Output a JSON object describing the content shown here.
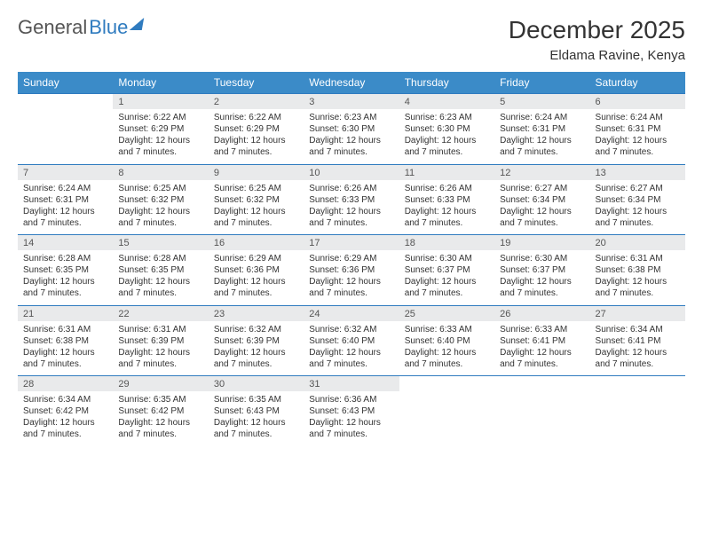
{
  "logo": {
    "part1": "General",
    "part2": "Blue"
  },
  "title": "December 2025",
  "location": "Eldama Ravine, Kenya",
  "colors": {
    "header_bg": "#3b8bc8",
    "header_text": "#ffffff",
    "daynum_bg": "#e9eaeb",
    "border": "#2f7bbf",
    "text": "#333333",
    "logo_gray": "#555555",
    "logo_blue": "#2f7bbf"
  },
  "day_headers": [
    "Sunday",
    "Monday",
    "Tuesday",
    "Wednesday",
    "Thursday",
    "Friday",
    "Saturday"
  ],
  "weeks": [
    {
      "nums": [
        "",
        "1",
        "2",
        "3",
        "4",
        "5",
        "6"
      ],
      "cells": [
        [],
        [
          "Sunrise: 6:22 AM",
          "Sunset: 6:29 PM",
          "Daylight: 12 hours",
          "and 7 minutes."
        ],
        [
          "Sunrise: 6:22 AM",
          "Sunset: 6:29 PM",
          "Daylight: 12 hours",
          "and 7 minutes."
        ],
        [
          "Sunrise: 6:23 AM",
          "Sunset: 6:30 PM",
          "Daylight: 12 hours",
          "and 7 minutes."
        ],
        [
          "Sunrise: 6:23 AM",
          "Sunset: 6:30 PM",
          "Daylight: 12 hours",
          "and 7 minutes."
        ],
        [
          "Sunrise: 6:24 AM",
          "Sunset: 6:31 PM",
          "Daylight: 12 hours",
          "and 7 minutes."
        ],
        [
          "Sunrise: 6:24 AM",
          "Sunset: 6:31 PM",
          "Daylight: 12 hours",
          "and 7 minutes."
        ]
      ]
    },
    {
      "nums": [
        "7",
        "8",
        "9",
        "10",
        "11",
        "12",
        "13"
      ],
      "cells": [
        [
          "Sunrise: 6:24 AM",
          "Sunset: 6:31 PM",
          "Daylight: 12 hours",
          "and 7 minutes."
        ],
        [
          "Sunrise: 6:25 AM",
          "Sunset: 6:32 PM",
          "Daylight: 12 hours",
          "and 7 minutes."
        ],
        [
          "Sunrise: 6:25 AM",
          "Sunset: 6:32 PM",
          "Daylight: 12 hours",
          "and 7 minutes."
        ],
        [
          "Sunrise: 6:26 AM",
          "Sunset: 6:33 PM",
          "Daylight: 12 hours",
          "and 7 minutes."
        ],
        [
          "Sunrise: 6:26 AM",
          "Sunset: 6:33 PM",
          "Daylight: 12 hours",
          "and 7 minutes."
        ],
        [
          "Sunrise: 6:27 AM",
          "Sunset: 6:34 PM",
          "Daylight: 12 hours",
          "and 7 minutes."
        ],
        [
          "Sunrise: 6:27 AM",
          "Sunset: 6:34 PM",
          "Daylight: 12 hours",
          "and 7 minutes."
        ]
      ]
    },
    {
      "nums": [
        "14",
        "15",
        "16",
        "17",
        "18",
        "19",
        "20"
      ],
      "cells": [
        [
          "Sunrise: 6:28 AM",
          "Sunset: 6:35 PM",
          "Daylight: 12 hours",
          "and 7 minutes."
        ],
        [
          "Sunrise: 6:28 AM",
          "Sunset: 6:35 PM",
          "Daylight: 12 hours",
          "and 7 minutes."
        ],
        [
          "Sunrise: 6:29 AM",
          "Sunset: 6:36 PM",
          "Daylight: 12 hours",
          "and 7 minutes."
        ],
        [
          "Sunrise: 6:29 AM",
          "Sunset: 6:36 PM",
          "Daylight: 12 hours",
          "and 7 minutes."
        ],
        [
          "Sunrise: 6:30 AM",
          "Sunset: 6:37 PM",
          "Daylight: 12 hours",
          "and 7 minutes."
        ],
        [
          "Sunrise: 6:30 AM",
          "Sunset: 6:37 PM",
          "Daylight: 12 hours",
          "and 7 minutes."
        ],
        [
          "Sunrise: 6:31 AM",
          "Sunset: 6:38 PM",
          "Daylight: 12 hours",
          "and 7 minutes."
        ]
      ]
    },
    {
      "nums": [
        "21",
        "22",
        "23",
        "24",
        "25",
        "26",
        "27"
      ],
      "cells": [
        [
          "Sunrise: 6:31 AM",
          "Sunset: 6:38 PM",
          "Daylight: 12 hours",
          "and 7 minutes."
        ],
        [
          "Sunrise: 6:31 AM",
          "Sunset: 6:39 PM",
          "Daylight: 12 hours",
          "and 7 minutes."
        ],
        [
          "Sunrise: 6:32 AM",
          "Sunset: 6:39 PM",
          "Daylight: 12 hours",
          "and 7 minutes."
        ],
        [
          "Sunrise: 6:32 AM",
          "Sunset: 6:40 PM",
          "Daylight: 12 hours",
          "and 7 minutes."
        ],
        [
          "Sunrise: 6:33 AM",
          "Sunset: 6:40 PM",
          "Daylight: 12 hours",
          "and 7 minutes."
        ],
        [
          "Sunrise: 6:33 AM",
          "Sunset: 6:41 PM",
          "Daylight: 12 hours",
          "and 7 minutes."
        ],
        [
          "Sunrise: 6:34 AM",
          "Sunset: 6:41 PM",
          "Daylight: 12 hours",
          "and 7 minutes."
        ]
      ]
    },
    {
      "nums": [
        "28",
        "29",
        "30",
        "31",
        "",
        "",
        ""
      ],
      "cells": [
        [
          "Sunrise: 6:34 AM",
          "Sunset: 6:42 PM",
          "Daylight: 12 hours",
          "and 7 minutes."
        ],
        [
          "Sunrise: 6:35 AM",
          "Sunset: 6:42 PM",
          "Daylight: 12 hours",
          "and 7 minutes."
        ],
        [
          "Sunrise: 6:35 AM",
          "Sunset: 6:43 PM",
          "Daylight: 12 hours",
          "and 7 minutes."
        ],
        [
          "Sunrise: 6:36 AM",
          "Sunset: 6:43 PM",
          "Daylight: 12 hours",
          "and 7 minutes."
        ],
        [],
        [],
        []
      ]
    }
  ]
}
